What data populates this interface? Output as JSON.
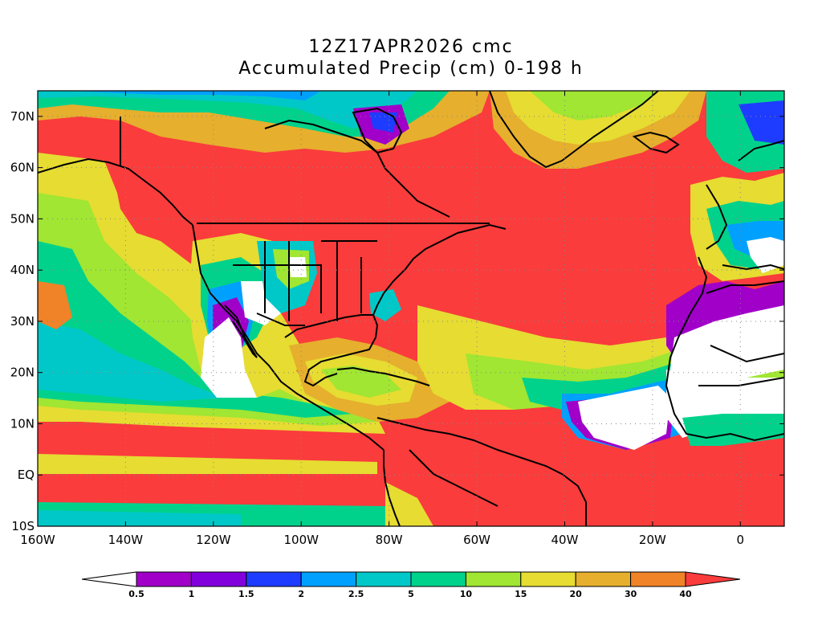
{
  "title": {
    "line1": "12Z17APR2026 cmc",
    "line2": "Accumulated Precip (cm) 0-198 h"
  },
  "map": {
    "lat_range": [
      -10,
      75
    ],
    "lon_range": [
      -160,
      10
    ],
    "lat_ticks": [
      {
        "value": 70,
        "label": "70N"
      },
      {
        "value": 60,
        "label": "60N"
      },
      {
        "value": 50,
        "label": "50N"
      },
      {
        "value": 40,
        "label": "40N"
      },
      {
        "value": 30,
        "label": "30N"
      },
      {
        "value": 20,
        "label": "20N"
      },
      {
        "value": 10,
        "label": "10N"
      },
      {
        "value": 0,
        "label": "EQ"
      },
      {
        "value": -10,
        "label": "10S"
      }
    ],
    "lon_ticks": [
      {
        "value": -160,
        "label": "160W"
      },
      {
        "value": -140,
        "label": "140W"
      },
      {
        "value": -120,
        "label": "120W"
      },
      {
        "value": -100,
        "label": "100W"
      },
      {
        "value": -80,
        "label": "80W"
      },
      {
        "value": -60,
        "label": "60W"
      },
      {
        "value": -40,
        "label": "40W"
      },
      {
        "value": -20,
        "label": "20W"
      },
      {
        "value": 0,
        "label": "0"
      }
    ],
    "grid": "dotted"
  },
  "colorbar": {
    "levels": [
      "0.5",
      "1",
      "1.5",
      "2",
      "2.5",
      "5",
      "10",
      "15",
      "20",
      "30",
      "40"
    ],
    "colors": [
      "#ffffff",
      "#a000c8",
      "#8200dc",
      "#1e3cff",
      "#00a0ff",
      "#00c8c8",
      "#00d28c",
      "#a0e632",
      "#e6dc32",
      "#e6af2d",
      "#f08228",
      "#fa3c3c"
    ]
  }
}
